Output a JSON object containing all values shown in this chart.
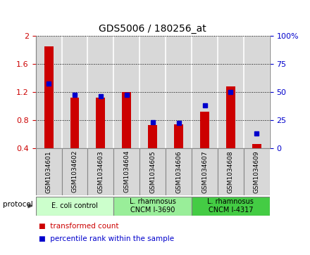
{
  "title": "GDS5006 / 180256_at",
  "samples": [
    "GSM1034601",
    "GSM1034602",
    "GSM1034603",
    "GSM1034604",
    "GSM1034605",
    "GSM1034606",
    "GSM1034607",
    "GSM1034608",
    "GSM1034609"
  ],
  "transformed_count": [
    1.85,
    1.12,
    1.12,
    1.2,
    0.73,
    0.74,
    0.92,
    1.28,
    0.46
  ],
  "percentile_rank": [
    57,
    47,
    46,
    47,
    23,
    22,
    38,
    50,
    13
  ],
  "ylim_left": [
    0.4,
    2.0
  ],
  "ylim_right": [
    0,
    100
  ],
  "yticks_left": [
    0.4,
    0.8,
    1.2,
    1.6,
    2.0
  ],
  "ytick_labels_left": [
    "0.4",
    "0.8",
    "1.2",
    "1.6",
    "2"
  ],
  "yticks_right": [
    0,
    25,
    50,
    75,
    100
  ],
  "ytick_labels_right": [
    "0",
    "25",
    "50",
    "75",
    "100%"
  ],
  "bar_color": "#cc0000",
  "dot_color": "#0000cc",
  "protocol_groups": [
    {
      "label": "E. coli control",
      "start": 0,
      "end": 3,
      "color": "#ccffcc"
    },
    {
      "label": "L. rhamnosus\nCNCM I-3690",
      "start": 3,
      "end": 6,
      "color": "#99ee99"
    },
    {
      "label": "L. rhamnosus\nCNCM I-4317",
      "start": 6,
      "end": 9,
      "color": "#44cc44"
    }
  ],
  "protocol_label": "protocol",
  "legend_items": [
    {
      "label": "transformed count",
      "color": "#cc0000"
    },
    {
      "label": "percentile rank within the sample",
      "color": "#0000cc"
    }
  ],
  "tick_label_color_left": "#cc0000",
  "tick_label_color_right": "#0000cc",
  "bar_width": 0.35,
  "baseline": 0.4,
  "bg_color": "#d8d8d8",
  "col_sep_color": "#ffffff",
  "spine_color": "#888888"
}
